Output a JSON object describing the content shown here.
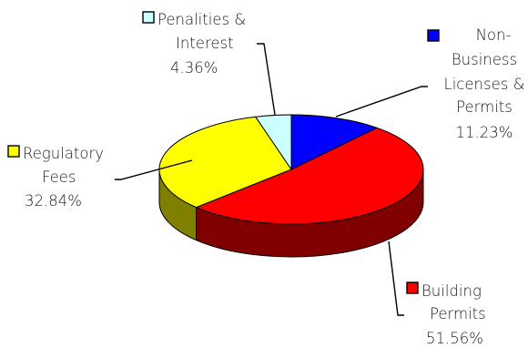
{
  "chart_data": {
    "type": "pie",
    "style": "3d",
    "categories": [
      "Non-Business Licenses & Permits",
      "Building Permits",
      "Regulatory Fees",
      "Penalities & Interest"
    ],
    "values": [
      11.23,
      51.56,
      32.84,
      4.36
    ],
    "percent_labels": [
      "11.23%",
      "51.56%",
      "32.84%",
      "4.36%"
    ],
    "colors": [
      "#0000ff",
      "#ff0000",
      "#ffff00",
      "#ccffff"
    ],
    "side_colors": [
      "#000080",
      "#800000",
      "#808000",
      "#66a0a0"
    ],
    "title": ""
  }
}
